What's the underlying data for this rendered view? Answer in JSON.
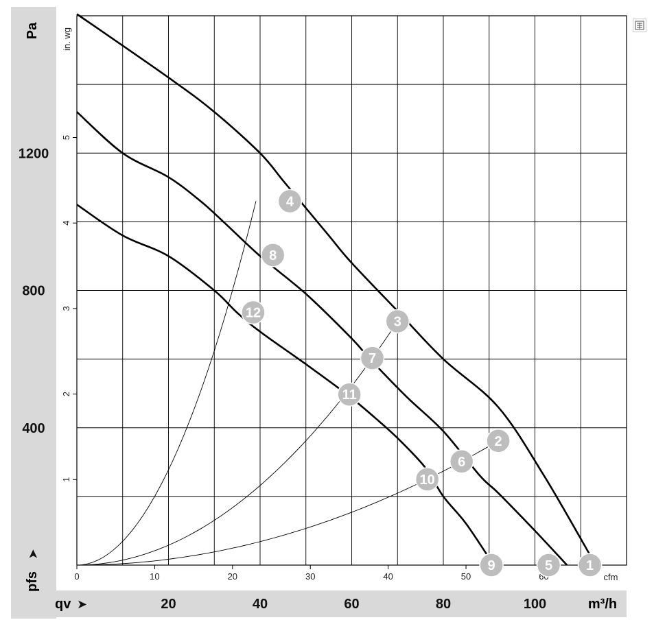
{
  "chart_data": {
    "type": "line",
    "title": "",
    "xlabel": "qv",
    "ylabel": "pfs",
    "x_unit_primary": "m³/h",
    "x_unit_secondary": "cfm",
    "y_unit_primary": "Pa",
    "y_unit_secondary": "in. wg",
    "xlim": [
      0,
      120
    ],
    "ylim": [
      0,
      1600
    ],
    "grid": true,
    "x_tick_labels_primary": [
      "20",
      "40",
      "60",
      "80",
      "100"
    ],
    "x_tick_values_primary": [
      20,
      40,
      60,
      80,
      100
    ],
    "y_tick_labels_primary": [
      "400",
      "800",
      "1200"
    ],
    "y_tick_values_primary": [
      400,
      800,
      1200
    ],
    "x_tick_labels_secondary": [
      "0",
      "10",
      "20",
      "30",
      "40",
      "50",
      "60"
    ],
    "y_tick_labels_secondary": [
      "1",
      "2",
      "3",
      "4",
      "5"
    ],
    "series": [
      {
        "kind": "fan",
        "x": [
          0,
          20,
          30,
          40,
          45,
          50,
          55,
          60,
          70,
          80,
          92,
          102,
          112
        ],
        "y": [
          1605,
          1420,
          1320,
          1200,
          1120,
          1040,
          960,
          880,
          740,
          600,
          460,
          260,
          30
        ]
      },
      {
        "kind": "fan",
        "x": [
          0,
          10,
          20,
          27,
          32,
          40,
          50,
          60,
          64,
          72,
          80,
          88,
          92,
          100,
          107
        ],
        "y": [
          1320,
          1200,
          1130,
          1060,
          1000,
          900,
          790,
          660,
          600,
          490,
          390,
          260,
          210,
          100,
          0
        ]
      },
      {
        "kind": "fan",
        "x": [
          0,
          10,
          20,
          30,
          35,
          40,
          50,
          59,
          65,
          70,
          76,
          80,
          85,
          91
        ],
        "y": [
          1050,
          960,
          900,
          800,
          735,
          680,
          585,
          497,
          430,
          370,
          285,
          200,
          120,
          0
        ]
      },
      {
        "kind": "system",
        "x": [
          0,
          39.1
        ],
        "y": [
          0,
          1060
        ]
      },
      {
        "kind": "system",
        "x": [
          0,
          70
        ],
        "y": [
          0,
          710
        ]
      },
      {
        "kind": "system",
        "x": [
          0,
          92
        ],
        "y": [
          0,
          362
        ]
      }
    ],
    "operating_points": [
      {
        "label": "1",
        "x": 112,
        "y": 0
      },
      {
        "label": "2",
        "x": 92,
        "y": 362
      },
      {
        "label": "3",
        "x": 70,
        "y": 710
      },
      {
        "label": "4",
        "x": 46.5,
        "y": 1060
      },
      {
        "label": "5",
        "x": 103,
        "y": 0
      },
      {
        "label": "6",
        "x": 84,
        "y": 302
      },
      {
        "label": "7",
        "x": 64.5,
        "y": 603
      },
      {
        "label": "8",
        "x": 42.8,
        "y": 903
      },
      {
        "label": "9",
        "x": 90.5,
        "y": 0
      },
      {
        "label": "10",
        "x": 76.5,
        "y": 250
      },
      {
        "label": "11",
        "x": 59.5,
        "y": 497
      },
      {
        "label": "12",
        "x": 38.5,
        "y": 736
      }
    ]
  },
  "labels": {
    "y_unit_primary": "Pa",
    "y_unit_secondary": "in. wg",
    "y_axis_name": "pfs",
    "y_arrow": "➤",
    "x_axis_name": "qv",
    "x_arrow": "➤",
    "x_unit_primary": "m³/h",
    "x_unit_secondary": "cfm"
  },
  "icons": {
    "export": "export-icon"
  }
}
